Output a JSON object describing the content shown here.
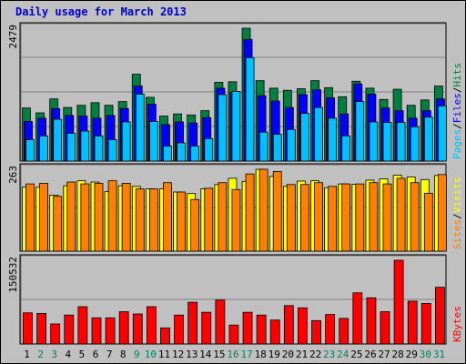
{
  "chart_data": {
    "type": "bar",
    "title": "Daily usage for March 2013",
    "categories": [
      "1",
      "2",
      "3",
      "4",
      "5",
      "6",
      "7",
      "8",
      "9",
      "10",
      "11",
      "12",
      "13",
      "14",
      "15",
      "16",
      "17",
      "18",
      "19",
      "20",
      "21",
      "22",
      "23",
      "24",
      "25",
      "26",
      "27",
      "28",
      "29",
      "30",
      "31"
    ],
    "weekend_days": [
      "2",
      "3",
      "9",
      "10",
      "16",
      "17",
      "23",
      "24",
      "30",
      "31"
    ],
    "panels": [
      {
        "name": "hits-files-pages",
        "ymax_label": "2479",
        "ylim": [
          0,
          2479
        ],
        "series": [
          {
            "name": "Hits",
            "color": "#008040",
            "values": [
              990,
              900,
              1160,
              1000,
              1040,
              1090,
              1040,
              1110,
              1620,
              1190,
              840,
              880,
              860,
              940,
              1470,
              1480,
              2479,
              1500,
              1360,
              1320,
              1350,
              1500,
              1370,
              1200,
              1490,
              1360,
              1150,
              1340,
              1040,
              1140,
              1400
            ]
          },
          {
            "name": "Files",
            "color": "#0000ff",
            "values": [
              740,
              800,
              980,
              850,
              840,
              800,
              850,
              980,
              1400,
              1060,
              680,
              730,
              710,
              810,
              1360,
              1280,
              2270,
              1220,
              1120,
              1000,
              1240,
              1330,
              1180,
              880,
              1440,
              1250,
              990,
              940,
              800,
              940,
              1160
            ]
          },
          {
            "name": "Pages",
            "color": "#00c0ff",
            "values": [
              400,
              470,
              780,
              520,
              560,
              470,
              400,
              730,
              1250,
              740,
              280,
              340,
              280,
              420,
              1240,
              1300,
              1930,
              540,
              500,
              590,
              890,
              1000,
              800,
              470,
              1110,
              730,
              720,
              720,
              640,
              820,
              1030
            ]
          }
        ]
      },
      {
        "name": "visits-sites",
        "ymax_label": "263",
        "ylim": [
          0,
          263
        ],
        "series": [
          {
            "name": "Visits",
            "color": "#ffff00",
            "values": [
              206,
              205,
              180,
              210,
              226,
              222,
              191,
              210,
              208,
              200,
              200,
              190,
              185,
              200,
              214,
              234,
              224,
              263,
              240,
              208,
              225,
              226,
              204,
              216,
              215,
              228,
              232,
              244,
              238,
              230,
              243
            ]
          },
          {
            "name": "Sites",
            "color": "#ff8000",
            "values": [
              216,
              218,
              176,
              222,
              216,
              218,
              226,
              218,
              200,
              200,
              220,
              190,
              166,
              202,
              220,
              198,
              248,
              263,
              256,
              214,
              214,
              220,
              208,
              216,
              216,
              220,
              216,
              234,
              220,
              186,
              246
            ]
          }
        ]
      },
      {
        "name": "kbytes",
        "ymax_label": "150532",
        "ylim": [
          0,
          150532
        ],
        "series": [
          {
            "name": "KBytes",
            "color": "#ff0000",
            "values": [
              56000,
              55000,
              36000,
              52000,
              67000,
              47000,
              47000,
              58000,
              54000,
              67000,
              29000,
              52000,
              75000,
              57000,
              79000,
              34000,
              57000,
              52000,
              43000,
              69000,
              65000,
              42000,
              53000,
              46000,
              92000,
              83000,
              58000,
              150532,
              77000,
              73000,
              102000
            ]
          }
        ]
      }
    ],
    "right_labels": [
      {
        "text": "Pages",
        "color": "#00c0ff"
      },
      {
        "text": "/",
        "color": "#000000"
      },
      {
        "text": "Files",
        "color": "#0000ff"
      },
      {
        "text": "/",
        "color": "#000000"
      },
      {
        "text": "Hits",
        "color": "#008040"
      },
      {
        "text": "Sites",
        "color": "#ff8000"
      },
      {
        "text": "/",
        "color": "#000000"
      },
      {
        "text": "Visits",
        "color": "#ffff00"
      },
      {
        "text": "KBytes",
        "color": "#ff0000"
      }
    ],
    "day_label_colors": {
      "weekday": "#000000",
      "weekend": "#00805c"
    }
  }
}
